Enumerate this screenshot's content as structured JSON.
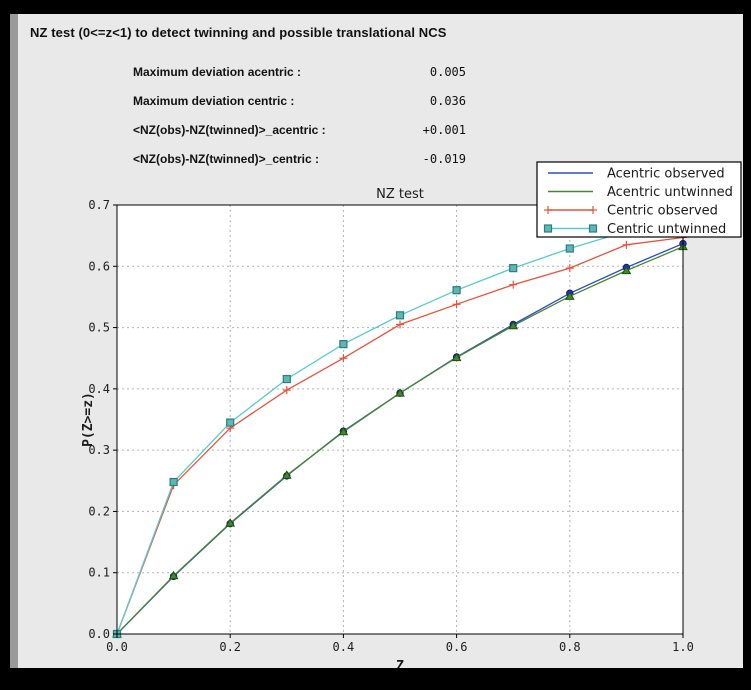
{
  "window": {
    "frame_color": "#000000",
    "panel_color": "#e9e9e9",
    "left_strip_color": "#9a9a9a"
  },
  "header": {
    "title": "NZ test (0<=z<1) to detect twinning and possible translational NCS",
    "stats": [
      {
        "label": "Maximum deviation acentric :",
        "value": "0.005"
      },
      {
        "label": "Maximum deviation centric :",
        "value": "0.036"
      },
      {
        "label": "<NZ(obs)-NZ(twinned)>_acentric :",
        "value": "+0.001"
      },
      {
        "label": "<NZ(obs)-NZ(twinned)>_centric :",
        "value": "-0.019"
      }
    ]
  },
  "chart_data": {
    "type": "line",
    "title": "NZ test",
    "xlabel": "Z",
    "ylabel": "P(Z>=z)",
    "xlim": [
      0.0,
      1.0
    ],
    "ylim": [
      0.0,
      0.7
    ],
    "xticks": [
      0.0,
      0.2,
      0.4,
      0.6,
      0.8,
      1.0
    ],
    "yticks": [
      0.0,
      0.1,
      0.2,
      0.3,
      0.4,
      0.5,
      0.6,
      0.7
    ],
    "grid": true,
    "grid_color": "#b4b4b4",
    "plot_bg": "#ffffff",
    "legend_position": "upper right",
    "x": [
      0.0,
      0.1,
      0.2,
      0.3,
      0.4,
      0.5,
      0.6,
      0.7,
      0.8,
      0.9,
      1.0
    ],
    "series": [
      {
        "name": "Acentric observed",
        "color": "#2e4bcc",
        "marker": "circle",
        "marker_fill": "#2334b8",
        "marker_edge": "#151d7a",
        "values": [
          0.0,
          0.094,
          0.18,
          0.258,
          0.331,
          0.393,
          0.452,
          0.505,
          0.556,
          0.598,
          0.637
        ]
      },
      {
        "name": "Acentric untwinned",
        "color": "#44882c",
        "marker": "triangle",
        "marker_fill": "#44882c",
        "marker_edge": "#1c4f12",
        "values": [
          0.0,
          0.095,
          0.181,
          0.259,
          0.33,
          0.393,
          0.451,
          0.503,
          0.551,
          0.593,
          0.632
        ]
      },
      {
        "name": "Centric observed",
        "color": "#e8523c",
        "marker": "plus",
        "marker_fill": "#e8523c",
        "marker_edge": "#e8523c",
        "values": [
          0.0,
          0.243,
          0.336,
          0.398,
          0.45,
          0.505,
          0.538,
          0.57,
          0.597,
          0.635,
          0.647
        ]
      },
      {
        "name": "Centric untwinned",
        "color": "#58cbce",
        "marker": "square",
        "marker_fill": "#5fb6b2",
        "marker_edge": "#26807e",
        "values": [
          0.0,
          0.248,
          0.345,
          0.416,
          0.473,
          0.52,
          0.561,
          0.597,
          0.629,
          0.657,
          0.683
        ]
      }
    ]
  }
}
